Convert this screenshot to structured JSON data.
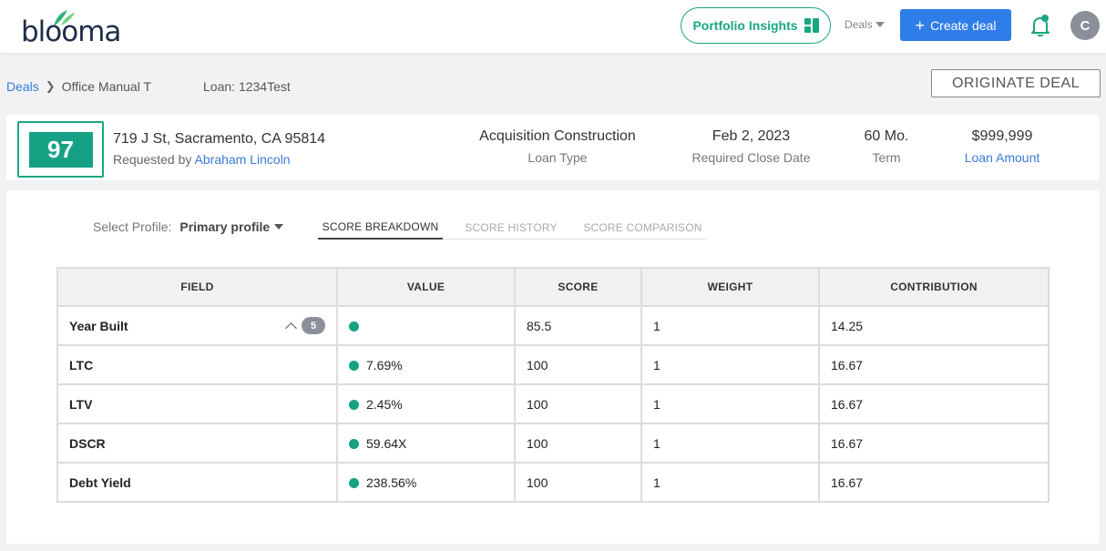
{
  "header": {
    "logo_text": "blooma",
    "portfolio_label": "Portfolio Insights",
    "deals_label": "Deals",
    "create_label": "Create deal",
    "avatar_initial": "C"
  },
  "breadcrumb": {
    "deals": "Deals",
    "deal_name": "Office Manual T",
    "loan": "Loan: 1234Test"
  },
  "originate_label": "ORIGINATE DEAL",
  "deal": {
    "score": "97",
    "address": "719 J St, Sacramento, CA 95814",
    "requested_prefix": "Requested by",
    "requested_by": "Abraham Lincoln",
    "loan_type_value": "Acquisition Construction",
    "loan_type_label": "Loan Type",
    "close_date_value": "Feb 2, 2023",
    "close_date_label": "Required Close Date",
    "term_value": "60 Mo.",
    "term_label": "Term",
    "amount_value": "$999,999",
    "amount_label": "Loan Amount"
  },
  "profile": {
    "label": "Select Profile:",
    "selected": "Primary profile"
  },
  "tabs": [
    "SCORE BREAKDOWN",
    "SCORE HISTORY",
    "SCORE COMPARISON"
  ],
  "table": {
    "headers": [
      "FIELD",
      "VALUE",
      "SCORE",
      "WEIGHT",
      "CONTRIBUTION"
    ],
    "rows": [
      {
        "field": "Year Built",
        "value": "",
        "score": "85.5",
        "weight": "1",
        "contribution": "14.25",
        "count": "5"
      },
      {
        "field": "LTC",
        "value": "7.69%",
        "score": "100",
        "weight": "1",
        "contribution": "16.67"
      },
      {
        "field": "LTV",
        "value": "2.45%",
        "score": "100",
        "weight": "1",
        "contribution": "16.67"
      },
      {
        "field": "DSCR",
        "value": "59.64X",
        "score": "100",
        "weight": "1",
        "contribution": "16.67"
      },
      {
        "field": "Debt Yield",
        "value": "238.56%",
        "score": "100",
        "weight": "1",
        "contribution": "16.67"
      }
    ]
  },
  "colors": {
    "brand_green": "#16a184",
    "primary_blue": "#2e7de9",
    "link_blue": "#3a7bd5"
  }
}
